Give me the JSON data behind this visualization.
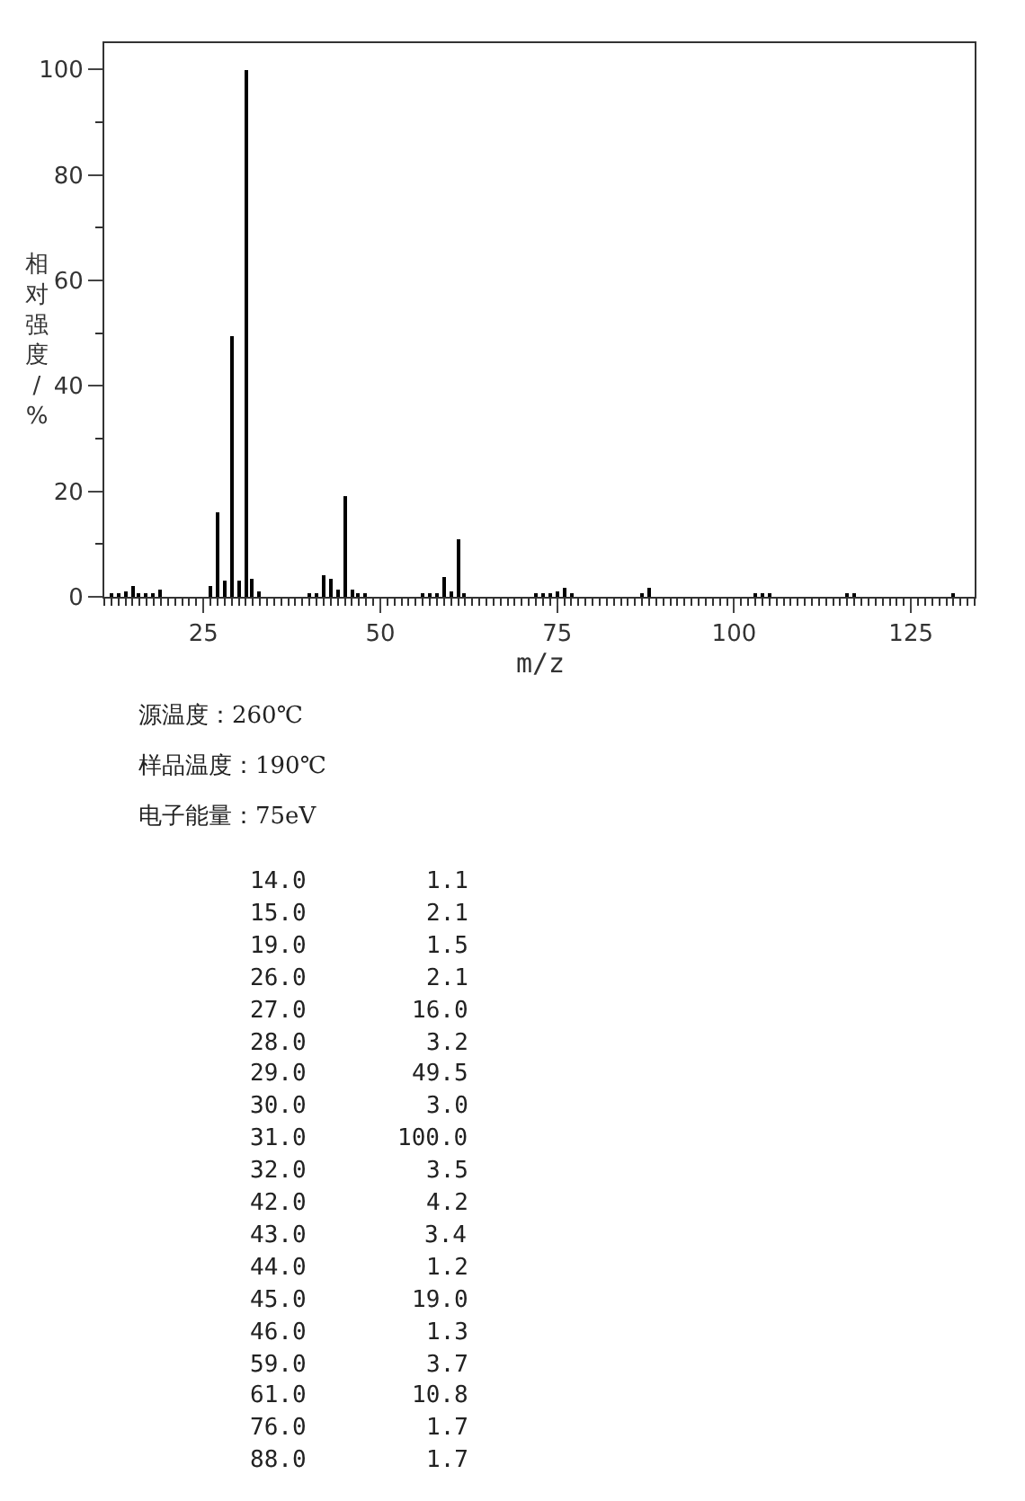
{
  "chart_data": {
    "type": "bar",
    "xlabel": "m/z",
    "ylabel": "相对强度/%",
    "color": "#000000",
    "x": [
      12,
      13,
      14,
      15,
      16,
      17,
      18,
      19,
      26,
      27,
      28,
      29,
      30,
      31,
      32,
      33,
      40,
      41,
      42,
      43,
      44,
      45,
      46,
      47,
      48,
      56,
      57,
      58,
      59,
      60,
      61,
      62,
      70,
      72,
      73,
      74,
      75,
      76,
      77,
      87,
      88,
      89,
      103,
      104,
      105,
      116,
      117,
      131
    ],
    "values": [
      0.4,
      0.5,
      1.1,
      2.1,
      0.5,
      0.6,
      0.8,
      1.5,
      2.1,
      16.0,
      3.2,
      49.5,
      3.0,
      100.0,
      3.5,
      0.9,
      0.4,
      0.4,
      4.2,
      3.4,
      1.2,
      19.0,
      1.3,
      0.8,
      0.4,
      0.4,
      0.5,
      0.7,
      3.7,
      0.9,
      10.8,
      0.6,
      null,
      0.5,
      0.7,
      0.6,
      0.9,
      1.7,
      0.6,
      0.8,
      1.7,
      null,
      0.6,
      0.6,
      0.4,
      0.5,
      0.8,
      0.6
    ],
    "xlim": [
      11,
      134
    ],
    "xticks": [
      25,
      50,
      75,
      100,
      125
    ],
    "ylim": [
      0,
      105
    ],
    "yticks": [
      0,
      20,
      40,
      60,
      80,
      100
    ],
    "annotations": [
      "源温度：260℃",
      "样品温度：190℃",
      "电子能量：75eV",
      "14.0",
      "1.1",
      "15.0",
      "2.1",
      "19.0",
      "1.5",
      "26.0",
      "2.1",
      "27.0",
      "16.0",
      "28.0",
      "3.2",
      "29.0",
      "49.5",
      "30.0",
      "3.0",
      "31.0",
      "100.0",
      "32.0",
      "3.5",
      "42.0",
      "4.2",
      "43.0",
      "3.4",
      "44.0",
      "1.2",
      "45.0",
      "19.0",
      "46.0",
      "1.3",
      "59.0",
      "3.7",
      "61.0",
      "10.8",
      "76.0",
      "1.7",
      "88.0",
      "1.7"
    ]
  }
}
